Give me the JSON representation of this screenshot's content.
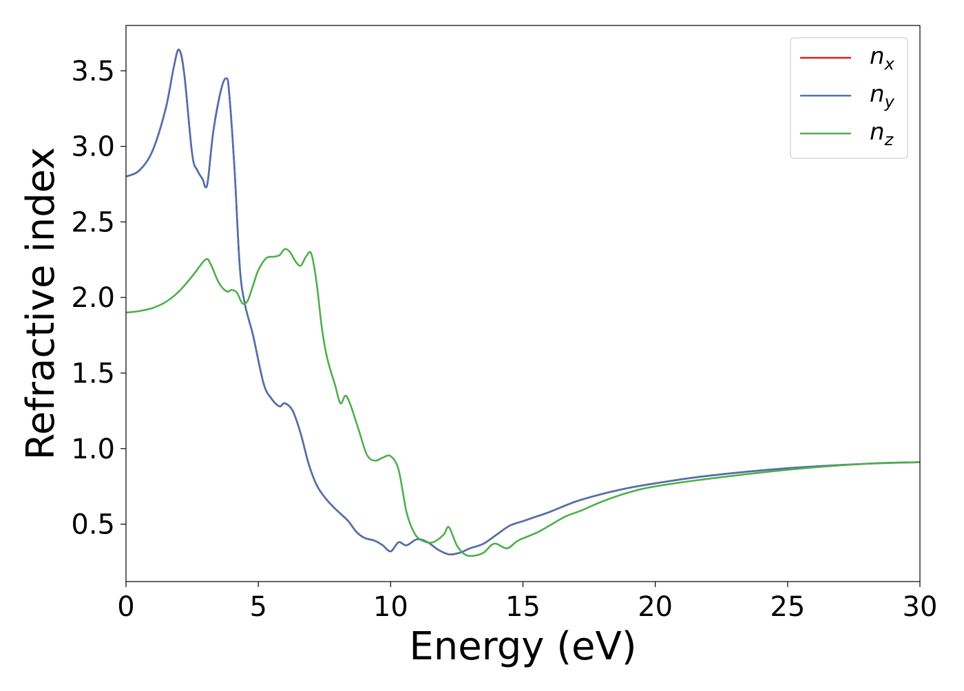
{
  "chart_data": {
    "type": "line",
    "title": "",
    "xlabel": "Energy (eV)",
    "ylabel": "Refractive index",
    "xlim": [
      0,
      30
    ],
    "ylim": [
      0.12,
      3.8
    ],
    "xticks": [
      0,
      5,
      10,
      15,
      20,
      25,
      30
    ],
    "xtick_labels": [
      "0",
      "5",
      "10",
      "15",
      "20",
      "25",
      "30"
    ],
    "yticks": [
      0.5,
      1.0,
      1.5,
      2.0,
      2.5,
      3.0,
      3.5
    ],
    "ytick_labels": [
      "0.5",
      "1.0",
      "1.5",
      "2.0",
      "2.5",
      "3.0",
      "3.5"
    ],
    "grid": false,
    "legend_position": "top-right",
    "series": [
      {
        "name": "n_x",
        "legend_main": "n",
        "legend_sub": "x",
        "color": "#e41a1c",
        "x": [
          0,
          0.5,
          1.0,
          1.5,
          1.8,
          2.0,
          2.2,
          2.5,
          2.7,
          2.9,
          3.0,
          3.1,
          3.3,
          3.6,
          3.8,
          3.9,
          4.1,
          4.3,
          4.5,
          4.8,
          5.2,
          5.5,
          5.8,
          6.0,
          6.3,
          6.6,
          6.9,
          7.2,
          7.5,
          7.8,
          8.1,
          8.4,
          8.7,
          9.0,
          9.4,
          9.7,
          10.0,
          10.3,
          10.6,
          11.0,
          11.4,
          11.8,
          12.2,
          12.6,
          13.0,
          13.5,
          14.0,
          14.5,
          15.0,
          15.5,
          16.0,
          17.0,
          18.0,
          19.0,
          20.0,
          22.0,
          25.0,
          28.0,
          30.0
        ],
        "y": [
          2.8,
          2.84,
          2.97,
          3.25,
          3.52,
          3.64,
          3.48,
          2.95,
          2.84,
          2.78,
          2.73,
          2.78,
          3.1,
          3.38,
          3.45,
          3.35,
          2.85,
          2.2,
          1.95,
          1.75,
          1.43,
          1.33,
          1.28,
          1.3,
          1.25,
          1.1,
          0.9,
          0.76,
          0.68,
          0.62,
          0.57,
          0.52,
          0.45,
          0.41,
          0.39,
          0.36,
          0.32,
          0.38,
          0.36,
          0.4,
          0.38,
          0.33,
          0.3,
          0.31,
          0.34,
          0.37,
          0.43,
          0.49,
          0.52,
          0.55,
          0.58,
          0.65,
          0.7,
          0.74,
          0.77,
          0.82,
          0.87,
          0.9,
          0.91
        ]
      },
      {
        "name": "n_y",
        "legend_main": "n",
        "legend_sub": "y",
        "color": "#4c72b0",
        "x": [
          0,
          0.5,
          1.0,
          1.5,
          1.8,
          2.0,
          2.2,
          2.5,
          2.7,
          2.9,
          3.0,
          3.1,
          3.3,
          3.6,
          3.8,
          3.9,
          4.1,
          4.3,
          4.5,
          4.8,
          5.2,
          5.5,
          5.8,
          6.0,
          6.3,
          6.6,
          6.9,
          7.2,
          7.5,
          7.8,
          8.1,
          8.4,
          8.7,
          9.0,
          9.4,
          9.7,
          10.0,
          10.3,
          10.6,
          11.0,
          11.4,
          11.8,
          12.2,
          12.6,
          13.0,
          13.5,
          14.0,
          14.5,
          15.0,
          15.5,
          16.0,
          17.0,
          18.0,
          19.0,
          20.0,
          22.0,
          25.0,
          28.0,
          30.0
        ],
        "y": [
          2.8,
          2.84,
          2.97,
          3.25,
          3.52,
          3.64,
          3.48,
          2.95,
          2.84,
          2.78,
          2.73,
          2.78,
          3.1,
          3.38,
          3.45,
          3.35,
          2.85,
          2.2,
          1.95,
          1.75,
          1.43,
          1.33,
          1.28,
          1.3,
          1.25,
          1.1,
          0.9,
          0.76,
          0.68,
          0.62,
          0.57,
          0.52,
          0.45,
          0.41,
          0.39,
          0.36,
          0.32,
          0.38,
          0.36,
          0.4,
          0.38,
          0.33,
          0.3,
          0.31,
          0.34,
          0.37,
          0.43,
          0.49,
          0.52,
          0.55,
          0.58,
          0.65,
          0.7,
          0.74,
          0.77,
          0.82,
          0.87,
          0.9,
          0.91
        ]
      },
      {
        "name": "n_z",
        "legend_main": "n",
        "legend_sub": "z",
        "color": "#4daf4a",
        "x": [
          0,
          0.5,
          1.0,
          1.5,
          2.0,
          2.5,
          3.0,
          3.2,
          3.5,
          3.8,
          4.0,
          4.2,
          4.4,
          4.6,
          4.8,
          5.0,
          5.3,
          5.6,
          5.8,
          6.0,
          6.2,
          6.4,
          6.6,
          6.8,
          7.0,
          7.2,
          7.4,
          7.6,
          7.9,
          8.1,
          8.3,
          8.5,
          8.8,
          9.1,
          9.4,
          9.7,
          10.0,
          10.3,
          10.6,
          10.9,
          11.2,
          11.6,
          12.0,
          12.2,
          12.5,
          12.8,
          13.1,
          13.5,
          13.8,
          14.0,
          14.4,
          14.8,
          15.2,
          15.6,
          16.0,
          16.6,
          17.2,
          18.0,
          19.0,
          20.0,
          22.0,
          25.0,
          28.0,
          30.0
        ],
        "y": [
          1.9,
          1.91,
          1.93,
          1.97,
          2.04,
          2.14,
          2.25,
          2.22,
          2.1,
          2.04,
          2.05,
          2.03,
          1.96,
          1.98,
          2.08,
          2.18,
          2.26,
          2.27,
          2.28,
          2.32,
          2.3,
          2.24,
          2.21,
          2.27,
          2.29,
          2.1,
          1.8,
          1.6,
          1.42,
          1.3,
          1.35,
          1.28,
          1.12,
          0.96,
          0.92,
          0.94,
          0.95,
          0.86,
          0.58,
          0.44,
          0.39,
          0.38,
          0.43,
          0.48,
          0.36,
          0.3,
          0.29,
          0.31,
          0.36,
          0.37,
          0.34,
          0.39,
          0.42,
          0.45,
          0.49,
          0.55,
          0.59,
          0.65,
          0.71,
          0.75,
          0.8,
          0.86,
          0.9,
          0.91
        ]
      }
    ]
  }
}
